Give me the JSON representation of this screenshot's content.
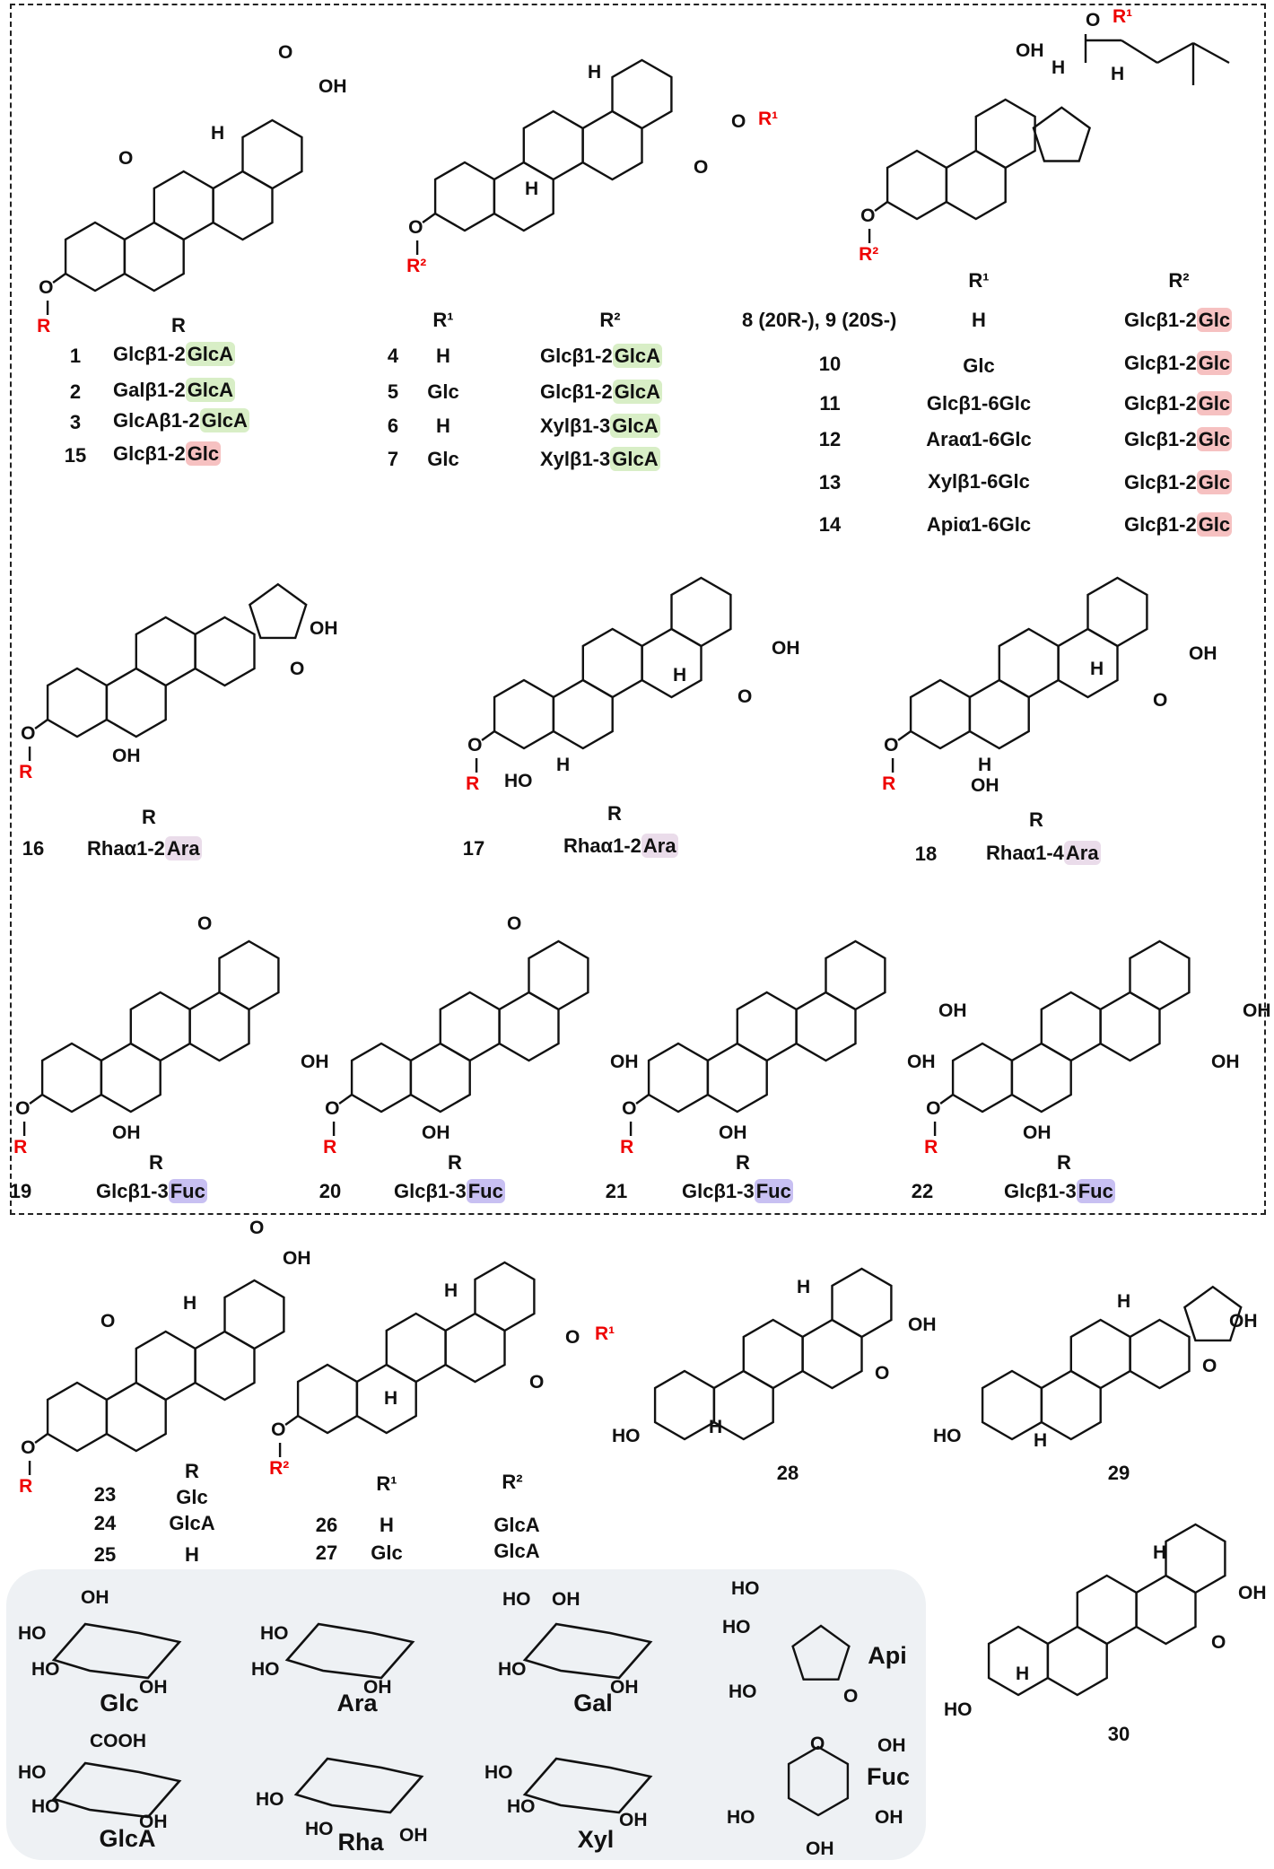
{
  "atoms": {
    "OH": "OH",
    "HO": "HO",
    "H": "H",
    "O": "O",
    "R": "R",
    "R1": "R¹",
    "R2": "R²",
    "COOH": "COOH"
  },
  "group1": {
    "header": "R",
    "rows": [
      {
        "num": "1",
        "prefix": "Glcβ1-2",
        "hl": "GlcA",
        "color": "green"
      },
      {
        "num": "2",
        "prefix": "Galβ1-2",
        "hl": "GlcA",
        "color": "green"
      },
      {
        "num": "3",
        "prefix": "GlcAβ1-2",
        "hl": "GlcA",
        "color": "green"
      },
      {
        "num": "15",
        "prefix": "Glcβ1-2",
        "hl": "Glc",
        "color": "red"
      }
    ]
  },
  "group2": {
    "header_r1": "R¹",
    "header_r2": "R²",
    "rows": [
      {
        "num": "4",
        "r1": "H",
        "prefix": "Glcβ1-2",
        "hl": "GlcA"
      },
      {
        "num": "5",
        "r1": "Glc",
        "prefix": "Glcβ1-2",
        "hl": "GlcA"
      },
      {
        "num": "6",
        "r1": "H",
        "prefix": "Xylβ1-3",
        "hl": "GlcA"
      },
      {
        "num": "7",
        "r1": "Glc",
        "prefix": "Xylβ1-3",
        "hl": "GlcA"
      }
    ]
  },
  "group3": {
    "header_r1": "R¹",
    "header_r2": "R²",
    "rows": [
      {
        "num": "8 (20R-), 9 (20S-)",
        "r1": "H",
        "prefix": "Glcβ1-2",
        "hl": "Glc"
      },
      {
        "num": "10",
        "r1": "Glc",
        "prefix": "Glcβ1-2",
        "hl": "Glc"
      },
      {
        "num": "11",
        "r1": "Glcβ1-6Glc",
        "prefix": "Glcβ1-2",
        "hl": "Glc"
      },
      {
        "num": "12",
        "r1": "Araα1-6Glc",
        "prefix": "Glcβ1-2",
        "hl": "Glc"
      },
      {
        "num": "13",
        "r1": "Xylβ1-6Glc",
        "prefix": "Glcβ1-2",
        "hl": "Glc"
      },
      {
        "num": "14",
        "r1": "Apiα1-6Glc",
        "prefix": "Glcβ1-2",
        "hl": "Glc"
      }
    ]
  },
  "group4": [
    {
      "num": "16",
      "header": "R",
      "prefix": "Rhaα1-2",
      "hl": "Ara"
    },
    {
      "num": "17",
      "header": "R",
      "prefix": "Rhaα1-2",
      "hl": "Ara"
    },
    {
      "num": "18",
      "header": "R",
      "prefix": "Rhaα1-4",
      "hl": "Ara"
    }
  ],
  "group5": [
    {
      "num": "19",
      "header": "R",
      "prefix": "Glcβ1-3",
      "hl": "Fuc"
    },
    {
      "num": "20",
      "header": "R",
      "prefix": "Glcβ1-3",
      "hl": "Fuc"
    },
    {
      "num": "21",
      "header": "R",
      "prefix": "Glcβ1-3",
      "hl": "Fuc"
    },
    {
      "num": "22",
      "header": "R",
      "prefix": "Glcβ1-3",
      "hl": "Fuc"
    }
  ],
  "group6": {
    "header": "R",
    "rows": [
      {
        "num": "23",
        "r": "Glc"
      },
      {
        "num": "24",
        "r": "GlcA"
      },
      {
        "num": "25",
        "r": "H"
      }
    ]
  },
  "group7": {
    "header_r1": "R¹",
    "header_r2": "R²",
    "rows": [
      {
        "num": "26",
        "r1": "H",
        "r2": "GlcA"
      },
      {
        "num": "27",
        "r1": "Glc",
        "r2": "GlcA"
      }
    ]
  },
  "compounds": {
    "c28": "28",
    "c29": "29",
    "c30": "30"
  },
  "sugars": {
    "glc": "Glc",
    "ara": "Ara",
    "gal": "Gal",
    "api": "Api",
    "glca": "GlcA",
    "rha": "Rha",
    "xyl": "Xyl",
    "fuc": "Fuc"
  },
  "colors": {
    "green": "#d8eec6",
    "red": "#f6c1c1",
    "ara": "#eadcea",
    "fuc": "#c8c0f2",
    "substituent": "#e00000",
    "panel": "#eef1f4"
  }
}
